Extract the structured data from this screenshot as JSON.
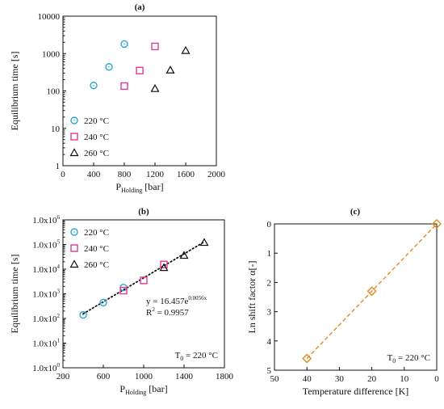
{
  "chart_data": [
    {
      "panel_label": "(a)",
      "type": "scatter",
      "xlabel": "P",
      "xlabel_sub": "Holding",
      "xlabel_unit": " [bar]",
      "ylabel": "Equilibrium time [s]",
      "xlim": [
        0,
        2000
      ],
      "ylim": [
        1,
        10000
      ],
      "y_scale": "log",
      "x_ticks": [
        0,
        400,
        800,
        1200,
        1600,
        2000
      ],
      "x_tick_labels": [
        "0",
        "400",
        "800",
        "1200",
        "1600",
        "2000"
      ],
      "y_ticks": [
        1,
        10,
        100,
        1000,
        10000
      ],
      "y_tick_labels": [
        "1",
        "10",
        "100",
        "1000",
        "10000"
      ],
      "legend_position": "bottom-left",
      "series": [
        {
          "name": "220 °C",
          "marker": "circle",
          "color": "#29a8d0",
          "x": [
            400,
            600,
            800
          ],
          "y": [
            140,
            440,
            1800
          ]
        },
        {
          "name": "240 °C",
          "marker": "square",
          "color": "#dc3c9a",
          "x": [
            800,
            1000,
            1200
          ],
          "y": [
            135,
            350,
            1550
          ]
        },
        {
          "name": "260 °C",
          "marker": "triangle",
          "color": "#111111",
          "x": [
            1200,
            1400,
            1600
          ],
          "y": [
            115,
            360,
            1200
          ]
        }
      ]
    },
    {
      "panel_label": "(b)",
      "type": "scatter",
      "xlabel": "P",
      "xlabel_sub": "Holding",
      "xlabel_unit": " [bar]",
      "ylabel": "Equilibrium time [s]",
      "xlim": [
        200,
        1800
      ],
      "ylim": [
        1,
        1000000
      ],
      "y_scale": "log",
      "x_ticks": [
        200,
        600,
        1000,
        1400,
        1800
      ],
      "x_tick_labels": [
        "200",
        "600",
        "1000",
        "1400",
        "1800"
      ],
      "y_ticks": [
        1,
        10,
        100,
        1000,
        10000,
        100000,
        1000000
      ],
      "y_tick_labels": [
        {
          "base": "1.0x10",
          "exp": "0"
        },
        {
          "base": "1.0x10",
          "exp": "1"
        },
        {
          "base": "1.0x10",
          "exp": "2"
        },
        {
          "base": "1.0x10",
          "exp": "3"
        },
        {
          "base": "1.0x10",
          "exp": "4"
        },
        {
          "base": "1.0x10",
          "exp": "5"
        },
        {
          "base": "1.0x10",
          "exp": "6"
        }
      ],
      "legend_position": "top-left",
      "fit": {
        "type": "exponential",
        "a": 16.457,
        "b": 0.0056,
        "x_range": [
          400,
          1600
        ],
        "style": "dotted"
      },
      "annotations": {
        "equation_main": "y = 16.457e",
        "equation_exp": "0.0056x",
        "r2_main": "R",
        "r2_sup": "2",
        "r2_value": " = 0.9957",
        "t0_main": "T",
        "t0_sub": "0",
        "t0_value": " = 220 °C"
      },
      "series": [
        {
          "name": "220 °C",
          "marker": "circle",
          "color": "#29a8d0",
          "x": [
            400,
            600,
            800
          ],
          "y": [
            140,
            440,
            1800
          ]
        },
        {
          "name": "240 °C",
          "marker": "square",
          "color": "#dc3c9a",
          "x": [
            800,
            1000,
            1200
          ],
          "y": [
            1350,
            3500,
            15500
          ]
        },
        {
          "name": "260 °C",
          "marker": "triangle",
          "color": "#111111",
          "x": [
            1200,
            1400,
            1600
          ],
          "y": [
            11500,
            36000,
            120000
          ]
        }
      ]
    },
    {
      "panel_label": "(c)",
      "type": "line",
      "xlabel": "Temperature difference [K]",
      "ylabel": "Ln shift factor α[-]",
      "xlim": [
        50,
        0
      ],
      "ylim": [
        0,
        5
      ],
      "x_inverted": true,
      "y_inverted": true,
      "x_ticks": [
        50,
        40,
        30,
        20,
        10,
        0
      ],
      "x_tick_labels": [
        "50",
        "40",
        "30",
        "20",
        "10",
        "0"
      ],
      "y_ticks": [
        0,
        1,
        2,
        3,
        4,
        5
      ],
      "y_tick_labels": [
        "0",
        "1",
        "2",
        "3",
        "4",
        "5"
      ],
      "annotations": {
        "t0_main": "T",
        "t0_sub": "0",
        "t0_value": " = 220 °C"
      },
      "series": [
        {
          "marker": "diamond",
          "color": "#e58a1f",
          "line_style": "dashed",
          "x": [
            40,
            20,
            0
          ],
          "y": [
            4.6,
            2.3,
            0
          ]
        }
      ]
    }
  ]
}
